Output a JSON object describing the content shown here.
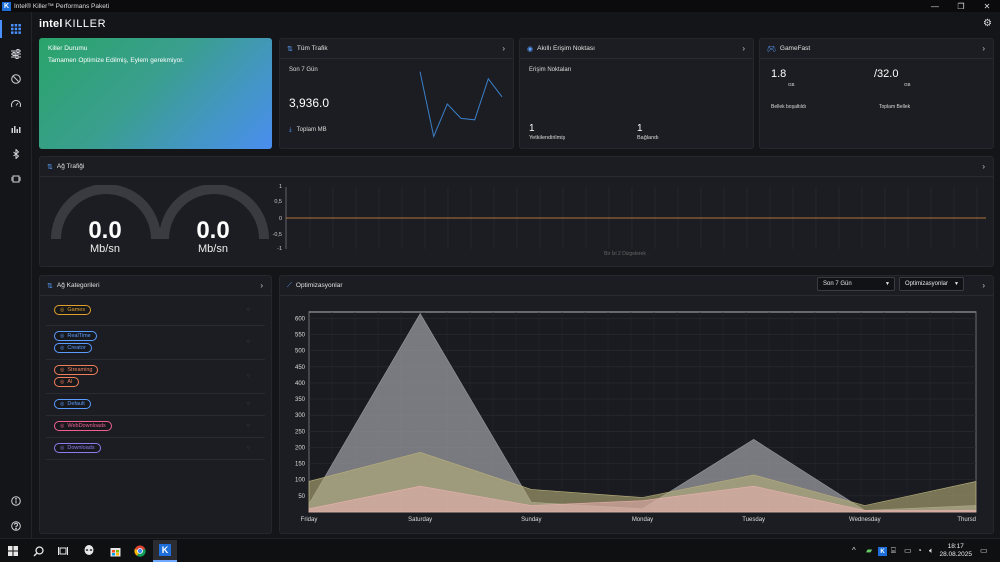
{
  "window": {
    "title": "Intel® Killer™ Performans Paketi",
    "app_icon_letter": "K",
    "minimize": "—",
    "restore": "❐",
    "close": "✕"
  },
  "header": {
    "brand_intel": "intel",
    "brand_killer": "KILLER",
    "settings_icon": "gear-icon"
  },
  "sidebar": {
    "items": [
      "dashboard-icon",
      "sliders-icon",
      "clock-icon",
      "speed-icon",
      "bars-icon",
      "bluetooth-icon",
      "chip-icon",
      "info-icon",
      "help-icon"
    ]
  },
  "killer_status": {
    "title": "Killer Durumu",
    "message": "Tamamen Optimize Edilmiş, Eylem gerekmiyor."
  },
  "total_traffic": {
    "title": "Tüm Trafik",
    "period": "Son 7 Gün",
    "value": "3,936.0",
    "label": "Toplam MB",
    "sparkline": [
      95,
      5,
      50,
      30,
      28,
      85,
      60
    ]
  },
  "access_point": {
    "title": "Akıllı Erişim Noktası",
    "subtitle": "Erişim Noktaları",
    "authorized_value": "1",
    "authorized_label": "Yetkilendirilmiş",
    "connected_value": "1",
    "connected_label": "Bağlandı"
  },
  "gamefast": {
    "title": "GameFast",
    "free_value": "1.8",
    "free_unit": "GB",
    "free_label": "Bellek boşaltıldı",
    "total_value": "/32.0",
    "total_unit": "GB",
    "total_label": "Toplam Bellek"
  },
  "network_traffic": {
    "title": "Ağ Trafiği",
    "download_value": "0.0",
    "download_unit": "Mb/sn",
    "upload_value": "0.0",
    "upload_unit": "Mb/sn",
    "y_ticks": [
      "1",
      "0,5",
      "0",
      "-0,5",
      "-1"
    ],
    "footer": "Bir İzi 2 Dizgelerek"
  },
  "categories": {
    "title": "Ağ Kategorileri",
    "rows": [
      {
        "pills": [
          {
            "label": "Games",
            "color": "#e0a02a"
          }
        ]
      },
      {
        "pills": [
          {
            "label": "RealTime",
            "color": "#5a9cff"
          },
          {
            "label": "Creator",
            "color": "#5a9cff"
          }
        ]
      },
      {
        "pills": [
          {
            "label": "Streaming",
            "color": "#f0805a"
          },
          {
            "label": "AI",
            "color": "#f0805a"
          }
        ]
      },
      {
        "pills": [
          {
            "label": "Default",
            "color": "#5a9cff"
          }
        ]
      },
      {
        "pills": [
          {
            "label": "WebDownloads",
            "color": "#f06090"
          }
        ]
      },
      {
        "pills": [
          {
            "label": "Downloads",
            "color": "#8c7cf0"
          }
        ]
      }
    ]
  },
  "optimizations": {
    "title": "Optimizasyonlar",
    "period_select": "Son 7 Gün",
    "type_select": "Optimizasyonlar"
  },
  "chart_data": {
    "type": "area",
    "categories": [
      "Friday",
      "Saturday",
      "Sunday",
      "Monday",
      "Tuesday",
      "Wednesday",
      "Thursd"
    ],
    "ylim": [
      0,
      620
    ],
    "y_ticks": [
      50,
      100,
      150,
      200,
      250,
      300,
      350,
      400,
      450,
      500,
      550,
      600
    ],
    "series": [
      {
        "values": [
          25,
          615,
          30,
          10,
          225,
          5,
          20
        ],
        "color": "#9a9aa0"
      },
      {
        "values": [
          95,
          185,
          70,
          45,
          115,
          20,
          95
        ],
        "color": "#b8b07a"
      },
      {
        "values": [
          10,
          80,
          20,
          35,
          80,
          5,
          5
        ],
        "color": "#e8b0b0"
      }
    ]
  },
  "taskbar": {
    "time": "18:17",
    "date": "28.08.2025"
  }
}
